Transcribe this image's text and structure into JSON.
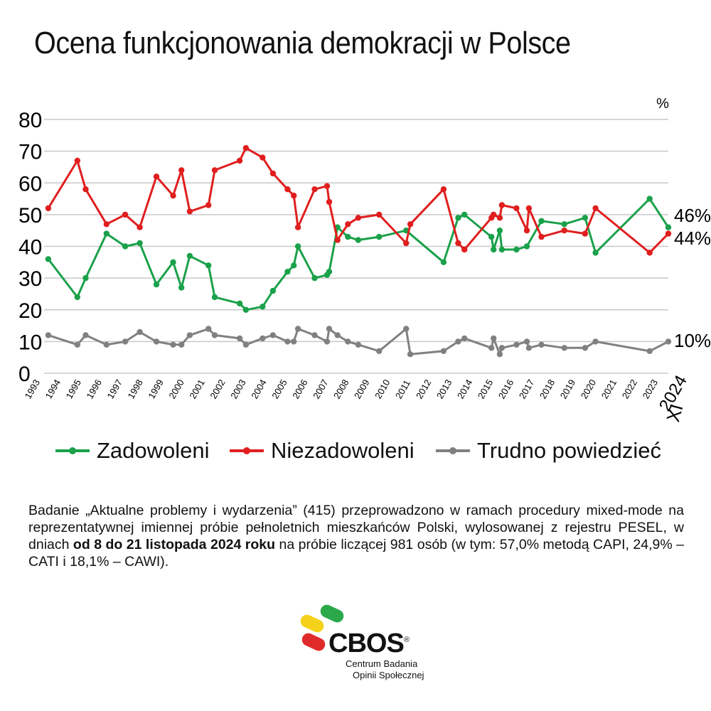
{
  "title": "Ocena funkcjonowania demokracji w Polsce",
  "unit": "%",
  "legend": [
    "Zadowoleni",
    "Niezadowoleni",
    "Trudno powiedzieć"
  ],
  "note": {
    "part1": "Badanie „Aktualne problemy i wydarzenia” (415) przeprowadzono w ramach procedury mixed-mode na reprezentatywnej imiennej próbie pełnoletnich mieszkańców Polski, wylosowanej z rejestru PESEL, w dniach ",
    "bold": "od 8 do 21 listopada 2024 roku",
    "part2": " na próbie liczącej 981 osób (w tym: 57,0% metodą CAPI, 24,9% – CATI i 18,1% – CAWI)."
  },
  "logo": {
    "name": "CBOS",
    "reg": "®",
    "sub1": "Centrum Badania",
    "sub2": "Opinii Społecznej"
  },
  "chart_data": {
    "type": "line",
    "ylim": [
      0,
      80
    ],
    "yticks": [
      0,
      10,
      20,
      30,
      40,
      50,
      60,
      70,
      80
    ],
    "grid": true,
    "xticks": [
      "1993",
      "1994",
      "1995",
      "1996",
      "1997",
      "1998",
      "1999",
      "2000",
      "2001",
      "2002",
      "2003",
      "2004",
      "2005",
      "2006",
      "2007",
      "2008",
      "2009",
      "2010",
      "2011",
      "2012",
      "2013",
      "2014",
      "2015",
      "2016",
      "2017",
      "2018",
      "2019",
      "2020",
      "2021",
      "2022",
      "2023",
      "2024"
    ],
    "last_tick_sub": "XI",
    "end_labels": [
      "46%",
      "44%",
      "10%"
    ],
    "colors": [
      "#1aa14a",
      "#e01e1e",
      "#808080"
    ],
    "series": [
      {
        "name": "Zadowoleni",
        "values": [
          [
            1993.2,
            36
          ],
          [
            1994.6,
            24
          ],
          [
            1995.0,
            30
          ],
          [
            1996.0,
            44
          ],
          [
            1996.9,
            40
          ],
          [
            1997.6,
            41
          ],
          [
            1998.4,
            28
          ],
          [
            1999.2,
            35
          ],
          [
            1999.6,
            27
          ],
          [
            2000.0,
            37
          ],
          [
            2000.9,
            34
          ],
          [
            2001.2,
            24
          ],
          [
            2002.4,
            22
          ],
          [
            2002.7,
            20
          ],
          [
            2003.5,
            21
          ],
          [
            2004.0,
            26
          ],
          [
            2004.7,
            32
          ],
          [
            2005.0,
            34
          ],
          [
            2005.2,
            40
          ],
          [
            2006.0,
            30
          ],
          [
            2006.6,
            31
          ],
          [
            2006.7,
            32
          ],
          [
            2007.1,
            46
          ],
          [
            2007.6,
            43
          ],
          [
            2008.1,
            42
          ],
          [
            2009.1,
            43
          ],
          [
            2010.4,
            45
          ],
          [
            2012.2,
            35
          ],
          [
            2012.9,
            49
          ],
          [
            2013.2,
            50
          ],
          [
            2014.5,
            43
          ],
          [
            2014.6,
            39
          ],
          [
            2014.9,
            45
          ],
          [
            2015.0,
            39
          ],
          [
            2015.7,
            39
          ],
          [
            2016.2,
            40
          ],
          [
            2016.9,
            48
          ],
          [
            2018.0,
            47
          ],
          [
            2019.0,
            49
          ],
          [
            2019.5,
            38
          ],
          [
            2022.1,
            55
          ],
          [
            2023.0,
            46
          ]
        ]
      },
      {
        "name": "Niezadowoleni",
        "values": [
          [
            1993.2,
            52
          ],
          [
            1994.6,
            67
          ],
          [
            1995.0,
            58
          ],
          [
            1996.0,
            47
          ],
          [
            1996.9,
            50
          ],
          [
            1997.6,
            46
          ],
          [
            1998.4,
            62
          ],
          [
            1999.2,
            56
          ],
          [
            1999.6,
            64
          ],
          [
            2000.0,
            51
          ],
          [
            2000.9,
            53
          ],
          [
            2001.2,
            64
          ],
          [
            2002.4,
            67
          ],
          [
            2002.7,
            71
          ],
          [
            2003.5,
            68
          ],
          [
            2004.0,
            63
          ],
          [
            2004.7,
            58
          ],
          [
            2005.0,
            56
          ],
          [
            2005.2,
            46
          ],
          [
            2006.0,
            58
          ],
          [
            2006.6,
            59
          ],
          [
            2006.7,
            54
          ],
          [
            2007.1,
            42
          ],
          [
            2007.6,
            47
          ],
          [
            2008.1,
            49
          ],
          [
            2009.1,
            50
          ],
          [
            2010.4,
            41
          ],
          [
            2010.6,
            47
          ],
          [
            2012.2,
            58
          ],
          [
            2012.9,
            41
          ],
          [
            2013.2,
            39
          ],
          [
            2014.5,
            49
          ],
          [
            2014.6,
            50
          ],
          [
            2014.9,
            49
          ],
          [
            2015.0,
            53
          ],
          [
            2015.7,
            52
          ],
          [
            2016.2,
            45
          ],
          [
            2016.3,
            52
          ],
          [
            2016.9,
            43
          ],
          [
            2018.0,
            45
          ],
          [
            2019.0,
            44
          ],
          [
            2019.5,
            52
          ],
          [
            2022.1,
            38
          ],
          [
            2023.0,
            44
          ]
        ]
      },
      {
        "name": "Trudno powiedzieć",
        "values": [
          [
            1993.2,
            12
          ],
          [
            1994.6,
            9
          ],
          [
            1995.0,
            12
          ],
          [
            1996.0,
            9
          ],
          [
            1996.9,
            10
          ],
          [
            1997.6,
            13
          ],
          [
            1998.4,
            10
          ],
          [
            1999.2,
            9
          ],
          [
            1999.6,
            9
          ],
          [
            2000.0,
            12
          ],
          [
            2000.9,
            14
          ],
          [
            2001.2,
            12
          ],
          [
            2002.4,
            11
          ],
          [
            2002.7,
            9
          ],
          [
            2003.5,
            11
          ],
          [
            2004.0,
            12
          ],
          [
            2004.7,
            10
          ],
          [
            2005.0,
            10
          ],
          [
            2005.2,
            14
          ],
          [
            2006.0,
            12
          ],
          [
            2006.6,
            10
          ],
          [
            2006.7,
            14
          ],
          [
            2007.1,
            12
          ],
          [
            2007.6,
            10
          ],
          [
            2008.1,
            9
          ],
          [
            2009.1,
            7
          ],
          [
            2010.4,
            14
          ],
          [
            2010.6,
            6
          ],
          [
            2012.2,
            7
          ],
          [
            2012.9,
            10
          ],
          [
            2013.2,
            11
          ],
          [
            2014.5,
            8
          ],
          [
            2014.6,
            11
          ],
          [
            2014.9,
            6
          ],
          [
            2015.0,
            8
          ],
          [
            2015.7,
            9
          ],
          [
            2016.2,
            10
          ],
          [
            2016.3,
            8
          ],
          [
            2016.9,
            9
          ],
          [
            2018.0,
            8
          ],
          [
            2019.0,
            8
          ],
          [
            2019.5,
            10
          ],
          [
            2022.1,
            7
          ],
          [
            2023.0,
            10
          ]
        ]
      }
    ]
  }
}
